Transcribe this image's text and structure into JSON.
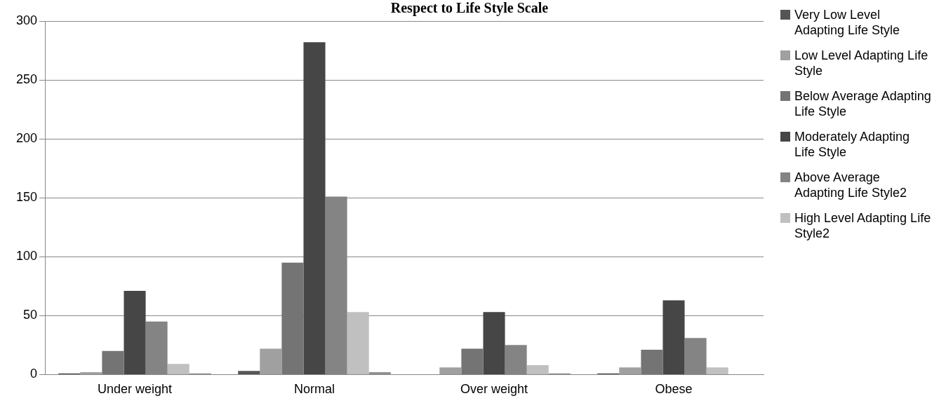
{
  "chart_data": {
    "type": "bar",
    "title": "Respect to Life Style Scale",
    "categories": [
      "Under weight",
      "Normal",
      "Over weight",
      "Obese"
    ],
    "series": [
      {
        "name": "Very Low Level Adapting Life Style",
        "color": "#555555",
        "values": [
          1,
          3,
          0,
          1
        ]
      },
      {
        "name": "Low Level Adapting Life Style",
        "color": "#a0a0a0",
        "values": [
          2,
          22,
          6,
          6
        ]
      },
      {
        "name": "Below Average Adapting Life Style",
        "color": "#747474",
        "values": [
          20,
          95,
          22,
          21
        ]
      },
      {
        "name": "Moderately Adapting Life Style",
        "color": "#464646",
        "values": [
          71,
          282,
          53,
          63
        ]
      },
      {
        "name": "Above Average Adapting Life Style2",
        "color": "#848484",
        "values": [
          45,
          151,
          25,
          31
        ]
      },
      {
        "name": "High Level Adapting Life Style2",
        "color": "#c0c0c0",
        "values": [
          9,
          53,
          8,
          6
        ]
      },
      {
        "color": "#909090",
        "values": [
          1,
          2,
          1,
          0
        ]
      }
    ],
    "ylim": [
      0,
      300
    ],
    "yticks": [
      0,
      50,
      100,
      150,
      200,
      250,
      300
    ],
    "grid": "y",
    "legend": "right"
  }
}
